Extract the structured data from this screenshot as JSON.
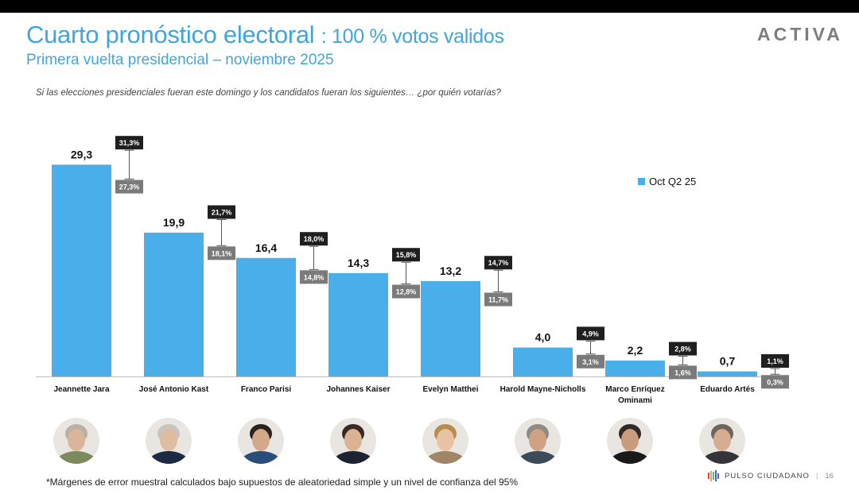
{
  "header": {
    "title_main": "Cuarto pronóstico electoral",
    "title_sub": ": 100 % votos validos",
    "subtitle": "Primera vuelta presidencial – noviembre 2025",
    "brand": "ACTIVA"
  },
  "question": "Si las elecciones presidenciales fueran este domingo y los candidatos fueran los siguientes… ¿por quién votarías?",
  "chart_data": {
    "type": "bar",
    "categories": [
      "Jeannette Jara",
      "José Antonio Kast",
      "Franco Parisi",
      "Johannes Kaiser",
      "Evelyn Matthei",
      "Harold Mayne-Nicholls",
      "Marco Enríquez Ominami",
      "Eduardo Artés"
    ],
    "category_labels": [
      [
        "Jeannette Jara"
      ],
      [
        "José Antonio Kast"
      ],
      [
        "Franco Parisi"
      ],
      [
        "Johannes Kaiser"
      ],
      [
        "Evelyn Matthei"
      ],
      [
        "Harold Mayne-Nicholls"
      ],
      [
        "Marco Enríquez",
        "Ominami"
      ],
      [
        "Eduardo Artés"
      ]
    ],
    "series": [
      {
        "name": "Oct Q2  25",
        "values": [
          29.3,
          19.9,
          16.4,
          14.3,
          13.2,
          4.0,
          2.2,
          0.7
        ]
      }
    ],
    "value_labels": [
      "29,3",
      "19,9",
      "16,4",
      "14,3",
      "13,2",
      "4,0",
      "2,2",
      "0,7"
    ],
    "upper_bound": [
      31.3,
      21.7,
      18.0,
      15.8,
      14.7,
      4.9,
      2.8,
      1.1
    ],
    "upper_labels": [
      "31,3%",
      "21,7%",
      "18,0%",
      "15,8%",
      "14,7%",
      "4,9%",
      "2,8%",
      "1,1%"
    ],
    "lower_bound": [
      27.3,
      18.1,
      14.8,
      12.8,
      11.7,
      3.1,
      1.6,
      0.3
    ],
    "lower_labels": [
      "27,3%",
      "18,1%",
      "14,8%",
      "12,8%",
      "11,7%",
      "3,1%",
      "1,6%",
      "0,3%"
    ],
    "ylim": [
      0,
      30
    ],
    "grid": false,
    "legend": "top-right"
  },
  "legend_label": "Oct Q2  25",
  "colors": {
    "bar": "#4aaeea",
    "title": "#3fa6dc",
    "upper_box": "#1f1f1f",
    "lower_box": "#7a7a7a"
  },
  "candidate_avatars": [
    {
      "name": "Jeannette Jara",
      "icon": "portrait-icon"
    },
    {
      "name": "José Antonio Kast",
      "icon": "portrait-icon"
    },
    {
      "name": "Franco Parisi",
      "icon": "portrait-icon"
    },
    {
      "name": "Johannes Kaiser",
      "icon": "portrait-icon"
    },
    {
      "name": "Evelyn Matthei",
      "icon": "portrait-icon"
    },
    {
      "name": "Harold Mayne-Nicholls",
      "icon": "portrait-icon"
    },
    {
      "name": "Marco Enríquez Ominami",
      "icon": "portrait-icon"
    },
    {
      "name": "Eduardo Artés",
      "icon": "portrait-icon"
    }
  ],
  "footnote": "*Márgenes de error muestral calculados bajo supuestos de aleatoriedad simple y un nivel de confianza del 95%",
  "footer": {
    "logo_text": "PULSO CIUDADANO",
    "page_number": "16"
  }
}
